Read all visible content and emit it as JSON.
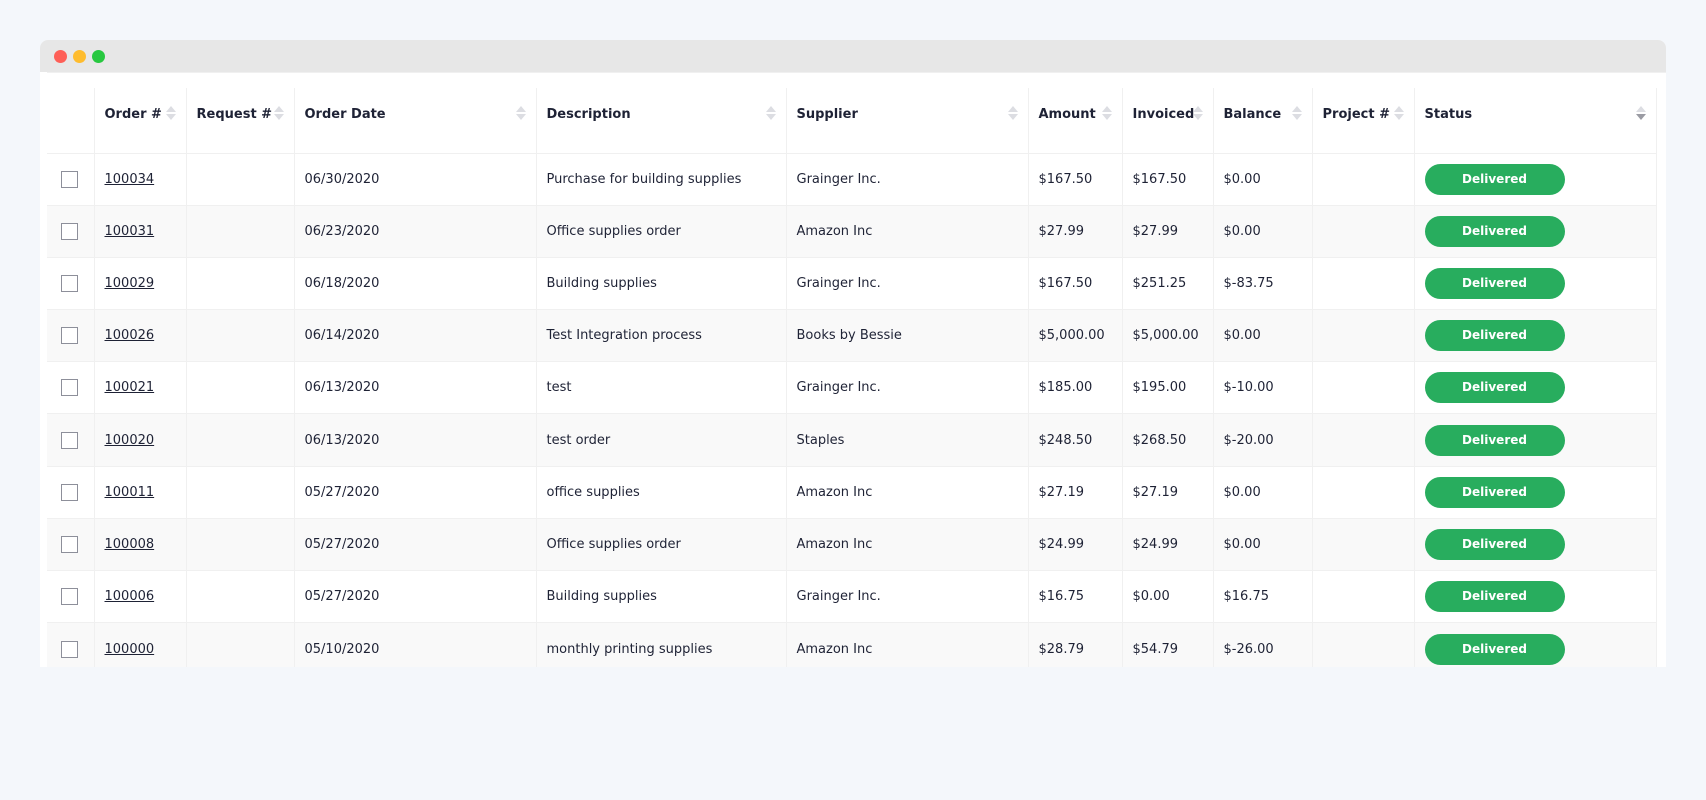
{
  "window": {
    "controls": [
      {
        "name": "close",
        "color": "#fe5f57"
      },
      {
        "name": "minimize",
        "color": "#febc2e"
      },
      {
        "name": "maximize",
        "color": "#28c840"
      }
    ]
  },
  "table": {
    "columns": [
      "Order #",
      "Request #",
      "Order Date",
      "Description",
      "Supplier",
      "Amount",
      "Invoiced",
      "Balance",
      "Project #",
      "Status"
    ],
    "status_color": "#28ad5e",
    "rows": [
      {
        "order": "100034",
        "request": "",
        "date": "06/30/2020",
        "description": "Purchase for building supplies",
        "supplier": "Grainger Inc.",
        "amount": "$167.50",
        "invoiced": "$167.50",
        "balance": "$0.00",
        "project": "",
        "status": "Delivered"
      },
      {
        "order": "100031",
        "request": "",
        "date": "06/23/2020",
        "description": "Office supplies order",
        "supplier": "Amazon Inc",
        "amount": "$27.99",
        "invoiced": "$27.99",
        "balance": "$0.00",
        "project": "",
        "status": "Delivered"
      },
      {
        "order": "100029",
        "request": "",
        "date": "06/18/2020",
        "description": "Building supplies",
        "supplier": "Grainger Inc.",
        "amount": "$167.50",
        "invoiced": "$251.25",
        "balance": "$-83.75",
        "project": "",
        "status": "Delivered"
      },
      {
        "order": "100026",
        "request": "",
        "date": "06/14/2020",
        "description": "Test Integration process",
        "supplier": "Books by Bessie",
        "amount": "$5,000.00",
        "invoiced": "$5,000.00",
        "balance": "$0.00",
        "project": "",
        "status": "Delivered"
      },
      {
        "order": "100021",
        "request": "",
        "date": "06/13/2020",
        "description": "test",
        "supplier": "Grainger Inc.",
        "amount": "$185.00",
        "invoiced": "$195.00",
        "balance": "$-10.00",
        "project": "",
        "status": "Delivered"
      },
      {
        "order": "100020",
        "request": "",
        "date": "06/13/2020",
        "description": "test order",
        "supplier": "Staples",
        "amount": "$248.50",
        "invoiced": "$268.50",
        "balance": "$-20.00",
        "project": "",
        "status": "Delivered"
      },
      {
        "order": "100011",
        "request": "",
        "date": "05/27/2020",
        "description": "office supplies",
        "supplier": "Amazon Inc",
        "amount": "$27.19",
        "invoiced": "$27.19",
        "balance": "$0.00",
        "project": "",
        "status": "Delivered"
      },
      {
        "order": "100008",
        "request": "",
        "date": "05/27/2020",
        "description": "Office supplies order",
        "supplier": "Amazon Inc",
        "amount": "$24.99",
        "invoiced": "$24.99",
        "balance": "$0.00",
        "project": "",
        "status": "Delivered"
      },
      {
        "order": "100006",
        "request": "",
        "date": "05/27/2020",
        "description": "Building supplies",
        "supplier": "Grainger Inc.",
        "amount": "$16.75",
        "invoiced": "$0.00",
        "balance": "$16.75",
        "project": "",
        "status": "Delivered"
      },
      {
        "order": "100000",
        "request": "",
        "date": "05/10/2020",
        "description": "monthly printing supplies",
        "supplier": "Amazon Inc",
        "amount": "$28.79",
        "invoiced": "$54.79",
        "balance": "$-26.00",
        "project": "",
        "status": "Delivered"
      }
    ]
  }
}
